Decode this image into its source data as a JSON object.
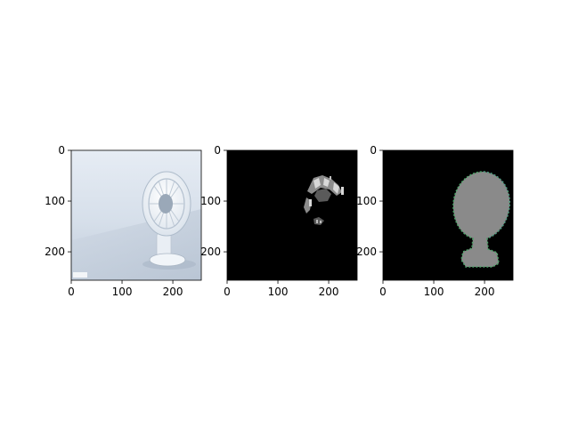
{
  "figure": {
    "background": "#ffffff",
    "panels": [
      {
        "name": "original-image",
        "content": "photo of a white desk fan on a pale blue background",
        "x_ticks": [
          "0",
          "100",
          "200"
        ],
        "y_ticks": [
          "0",
          "100",
          "200"
        ],
        "x_range": [
          0,
          256
        ],
        "y_range": [
          0,
          256
        ]
      },
      {
        "name": "grayscale-feature-map",
        "content": "mostly black image with sparse gray/white fragments outlining the fan head",
        "x_ticks": [
          "0",
          "100",
          "200"
        ],
        "y_ticks": [
          "0",
          "100",
          "200"
        ],
        "x_range": [
          0,
          256
        ],
        "y_range": [
          0,
          256
        ]
      },
      {
        "name": "segmentation-mask",
        "content": "black background with gray fan-shaped mask and thin green/blue edge speckles",
        "x_ticks": [
          "0",
          "100",
          "200"
        ],
        "y_ticks": [
          "0",
          "100",
          "200"
        ],
        "x_range": [
          0,
          256
        ],
        "y_range": [
          0,
          256
        ]
      }
    ]
  },
  "colors": {
    "photo_bg_top": "#e2e9f2",
    "photo_bg_bottom": "#c7d3e1",
    "fan": "#f2f6fa",
    "black": "#000000",
    "mask_gray": "#8a8a8a",
    "edge_green": "#4fa36a",
    "edge_blue": "#5a7fbf"
  }
}
